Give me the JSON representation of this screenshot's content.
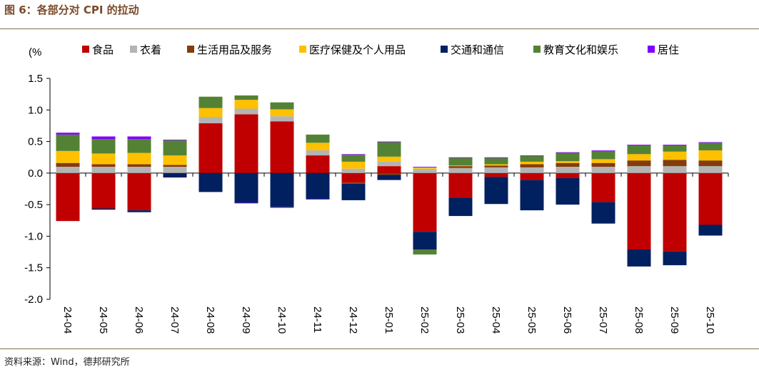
{
  "figure": {
    "title": "图 6：各部分对 CPI 的拉动",
    "source": "资料来源：Wind，德邦研究所"
  },
  "chart_data": {
    "type": "bar",
    "stacked": true,
    "title": "",
    "ylabel": "(%",
    "xlabel": "",
    "ylim": [
      -2.0,
      1.5
    ],
    "yticks": [
      "1.5",
      "1.0",
      "0.5",
      "0.0",
      "-0.5",
      "-1.0",
      "-1.5",
      "-2.0"
    ],
    "ytick_values": [
      1.5,
      1.0,
      0.5,
      0.0,
      -0.5,
      -1.0,
      -1.5,
      -2.0
    ],
    "grid": false,
    "legend_position": "top",
    "categories": [
      "24-04",
      "24-05",
      "24-06",
      "24-07",
      "24-08",
      "24-09",
      "24-10",
      "24-11",
      "24-12",
      "25-01",
      "25-02",
      "25-03",
      "25-04",
      "25-05",
      "25-06",
      "25-07",
      "25-08",
      "25-09",
      "25-10"
    ],
    "series": [
      {
        "name": "食品",
        "color": "#c00000",
        "values": [
          -0.76,
          -0.56,
          -0.59,
          0.0,
          0.79,
          0.93,
          0.82,
          0.28,
          -0.15,
          0.11,
          -0.93,
          -0.39,
          -0.06,
          -0.11,
          -0.08,
          -0.46,
          -1.21,
          -1.24,
          -0.82
        ]
      },
      {
        "name": "衣着",
        "color": "#b4b4b4",
        "values": [
          0.1,
          0.1,
          0.1,
          0.1,
          0.1,
          0.09,
          0.08,
          0.08,
          0.07,
          0.07,
          0.07,
          0.08,
          0.09,
          0.09,
          0.1,
          0.1,
          0.11,
          0.11,
          0.11
        ]
      },
      {
        "name": "生活用品及服务",
        "color": "#843c0c",
        "values": [
          0.06,
          0.04,
          0.04,
          0.03,
          0.0,
          0.0,
          0.0,
          0.0,
          -0.02,
          -0.03,
          0.0,
          0.03,
          0.03,
          0.05,
          0.06,
          0.06,
          0.09,
          0.1,
          0.09
        ]
      },
      {
        "name": "医疗保健及个人用品",
        "color": "#ffc000",
        "values": [
          0.19,
          0.17,
          0.18,
          0.15,
          0.14,
          0.14,
          0.11,
          0.12,
          0.11,
          0.08,
          0.02,
          0.01,
          0.02,
          0.04,
          0.03,
          0.06,
          0.1,
          0.13,
          0.16
        ]
      },
      {
        "name": "交通和通信",
        "color": "#002060",
        "values": [
          0.0,
          -0.02,
          -0.03,
          -0.07,
          -0.3,
          -0.47,
          -0.54,
          -0.41,
          -0.26,
          -0.08,
          -0.28,
          -0.29,
          -0.43,
          -0.48,
          -0.42,
          -0.34,
          -0.27,
          -0.22,
          -0.17
        ]
      },
      {
        "name": "教育文化和娱乐",
        "color": "#548235",
        "values": [
          0.26,
          0.23,
          0.22,
          0.24,
          0.18,
          0.07,
          0.11,
          0.13,
          0.11,
          0.23,
          -0.08,
          0.12,
          0.1,
          0.09,
          0.13,
          0.13,
          0.14,
          0.1,
          0.12
        ]
      },
      {
        "name": "居住",
        "color": "#7f00ff",
        "values": [
          0.03,
          0.04,
          0.04,
          0.01,
          0.0,
          -0.01,
          -0.01,
          -0.01,
          0.01,
          0.01,
          0.01,
          0.01,
          0.01,
          0.01,
          0.01,
          0.01,
          0.01,
          0.01,
          0.01
        ]
      }
    ]
  }
}
